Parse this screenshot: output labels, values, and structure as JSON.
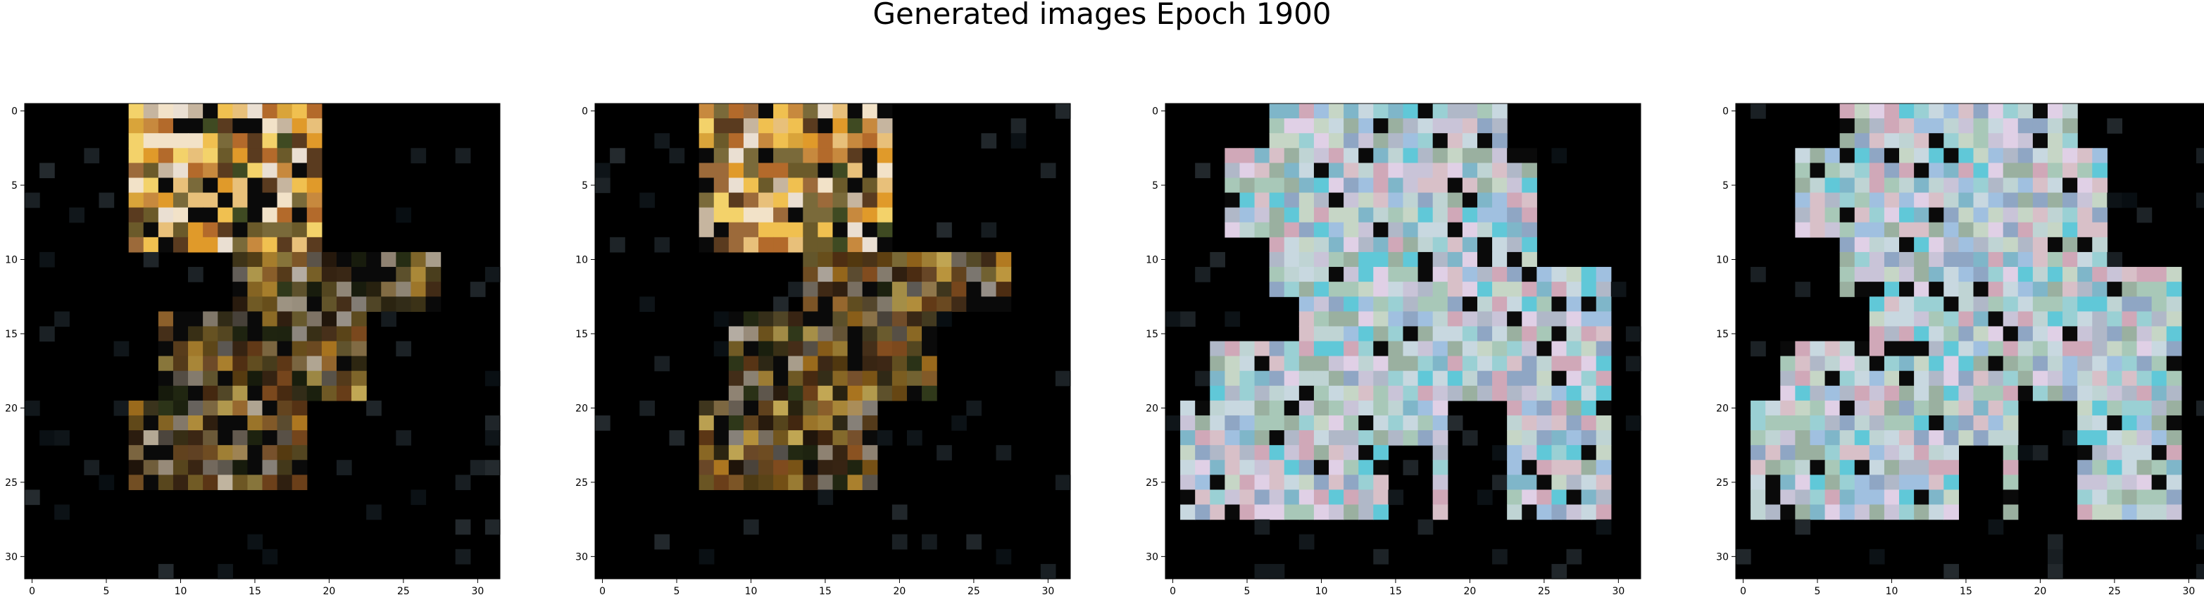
{
  "figure": {
    "suptitle": "Generated images Epoch 1900",
    "panels": [
      {
        "name": "panel-1",
        "theme": "warm",
        "xticks": [
          0,
          5,
          10,
          15,
          20,
          25,
          30
        ],
        "yticks": [
          0,
          5,
          10,
          15,
          20,
          25,
          30
        ]
      },
      {
        "name": "panel-2",
        "theme": "warm",
        "xticks": [
          0,
          5,
          10,
          15,
          20,
          25,
          30
        ],
        "yticks": [
          0,
          5,
          10,
          15,
          20,
          25,
          30
        ]
      },
      {
        "name": "panel-3",
        "theme": "cool",
        "xticks": [
          0,
          5,
          10,
          15,
          20,
          25,
          30
        ],
        "yticks": [
          0,
          5,
          10,
          15,
          20,
          25,
          30
        ]
      },
      {
        "name": "panel-4",
        "theme": "cool",
        "xticks": [
          0,
          5,
          10,
          15,
          20,
          25,
          30
        ],
        "yticks": [
          0,
          5,
          10,
          15,
          20,
          25,
          30
        ]
      }
    ]
  }
}
